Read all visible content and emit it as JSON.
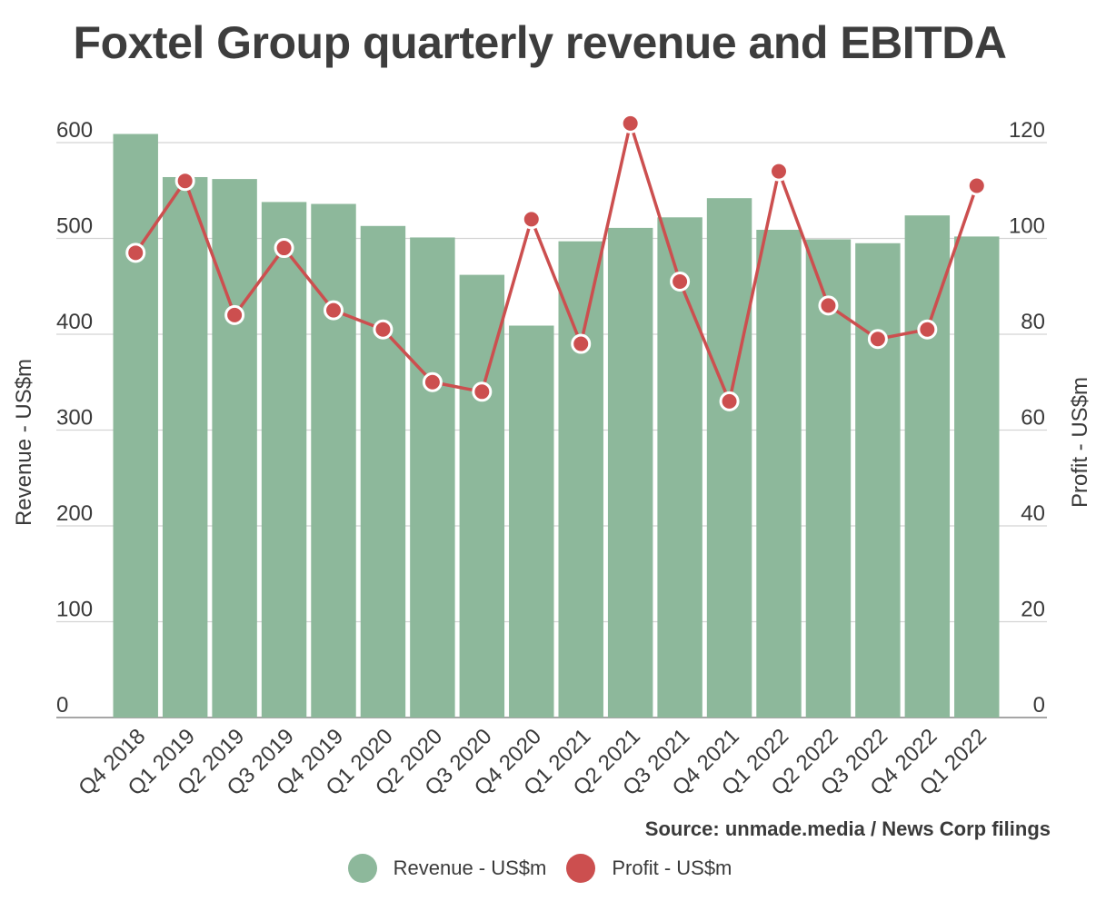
{
  "title": "Foxtel Group quarterly revenue and EBITDA",
  "source": "Source: unmade.media / News Corp filings",
  "colors": {
    "bar": "#8db89b",
    "line": "#cc4f4f",
    "grid": "#d4d4d4",
    "axis": "#888888"
  },
  "chart_data": {
    "type": "bar",
    "title": "Foxtel Group quarterly revenue and EBITDA",
    "categories": [
      "Q4 2018",
      "Q1 2019",
      "Q2 2019",
      "Q3 2019",
      "Q4 2019",
      "Q1 2020",
      "Q2 2020",
      "Q3 2020",
      "Q4 2020",
      "Q1 2021",
      "Q2 2021",
      "Q3 2021",
      "Q4 2021",
      "Q1 2022",
      "Q2 2022",
      "Q3 2022",
      "Q4 2022",
      "Q1 2022"
    ],
    "ylabel": "Revenue - US$m",
    "y2label": "Profit - US$m",
    "ylim": [
      0,
      600
    ],
    "y2lim": [
      0,
      120
    ],
    "yticks": [
      0,
      100,
      200,
      300,
      400,
      500,
      600
    ],
    "y2ticks": [
      0,
      20,
      40,
      60,
      80,
      100,
      120
    ],
    "grid": true,
    "legend": "bottom-center",
    "series": [
      {
        "name": "Revenue - US$m",
        "type": "bar",
        "axis": "left",
        "values": [
          609,
          564,
          562,
          538,
          536,
          513,
          501,
          462,
          409,
          497,
          511,
          522,
          542,
          509,
          499,
          495,
          524,
          502
        ]
      },
      {
        "name": "Profit - US$m",
        "type": "line",
        "axis": "right",
        "values": [
          97,
          112,
          84,
          98,
          85,
          81,
          70,
          68,
          104,
          78,
          124,
          91,
          66,
          114,
          86,
          79,
          81,
          111
        ]
      }
    ]
  }
}
